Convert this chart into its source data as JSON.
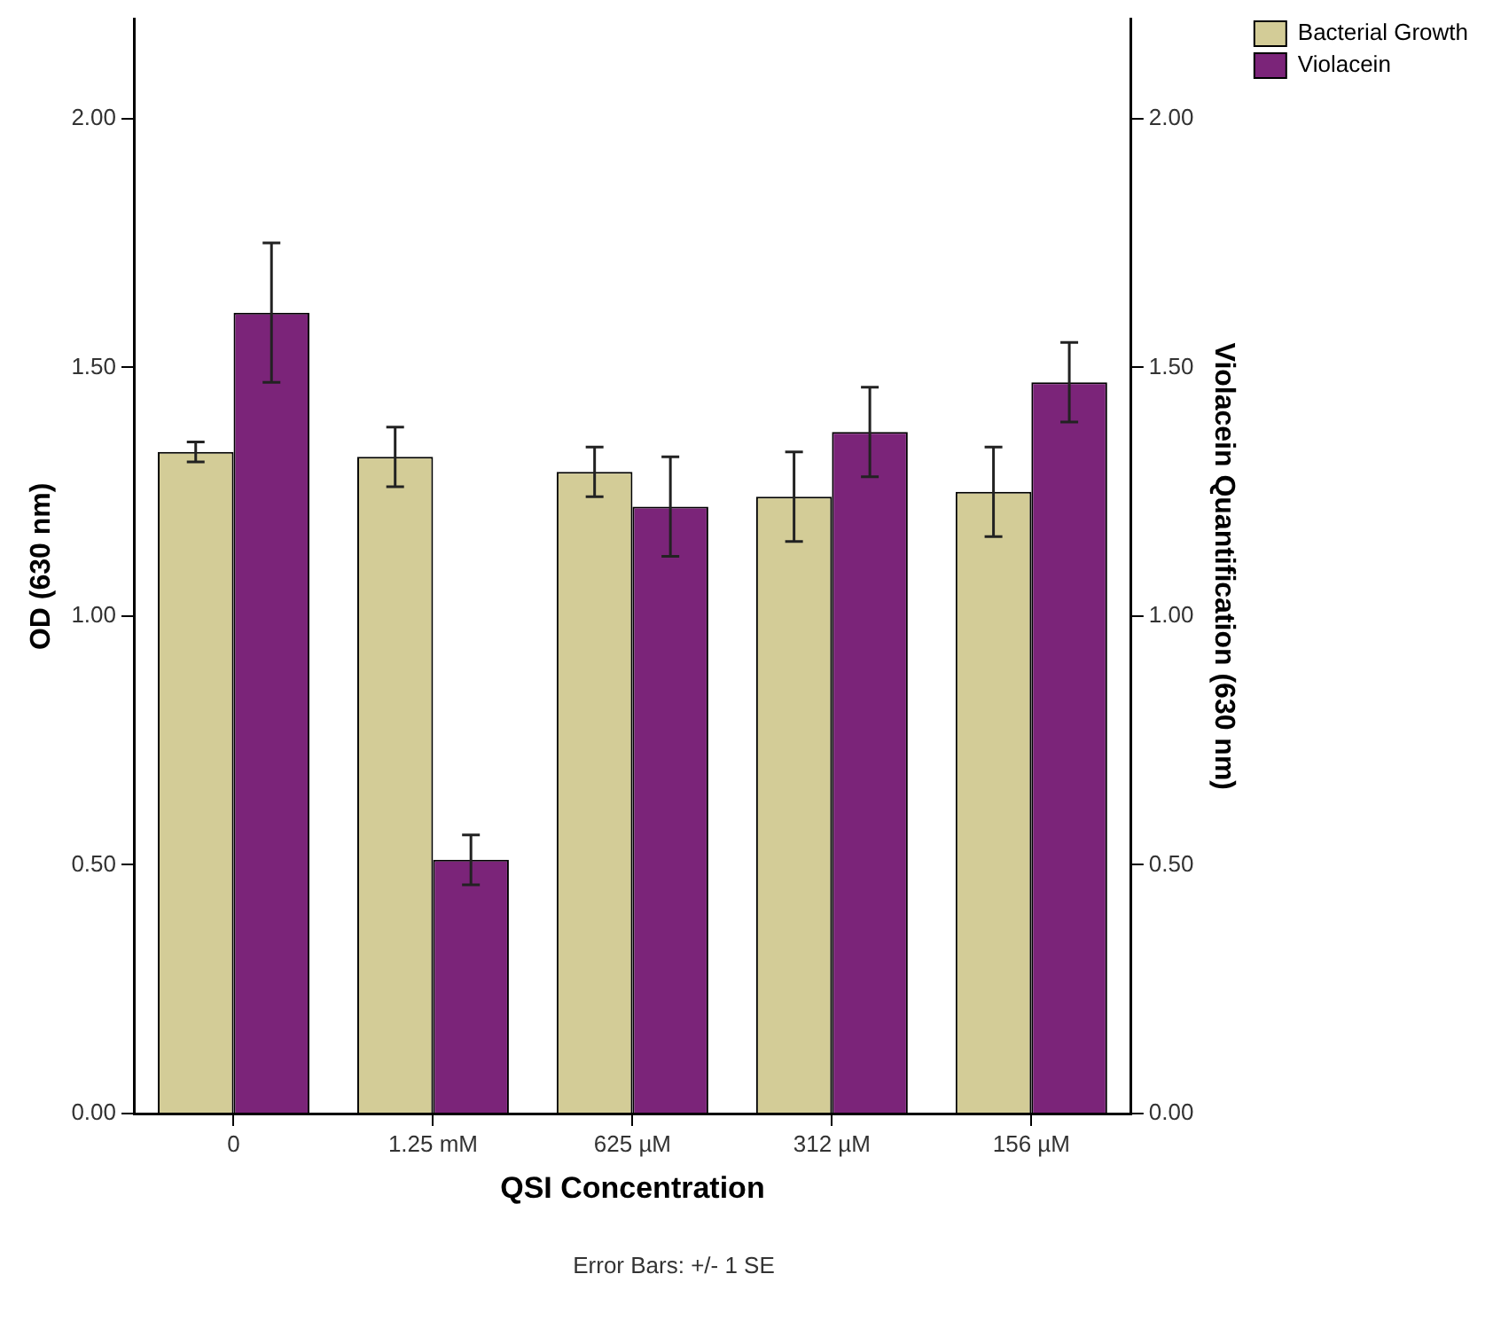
{
  "chart_data": {
    "type": "bar",
    "xlabel": "QSI Concentration",
    "ylabel": "OD (630 nm)",
    "y2label": "Violacein Quantification (630 nm)",
    "categories": [
      "0",
      "1.25 mM",
      "625 µM",
      "312 µM",
      "156 µM"
    ],
    "series": [
      {
        "name": "Bacterial Growth",
        "color": "#d3cc97",
        "values": [
          1.33,
          1.32,
          1.29,
          1.24,
          1.25
        ],
        "errors": [
          0.02,
          0.06,
          0.05,
          0.09,
          0.09
        ]
      },
      {
        "name": "Violacein",
        "color": "#7b2479",
        "axis": "y2",
        "values": [
          1.61,
          0.51,
          1.22,
          1.37,
          1.47
        ],
        "errors": [
          0.14,
          0.05,
          0.1,
          0.09,
          0.08
        ]
      }
    ],
    "ylim": [
      0,
      2.2
    ],
    "yticks": [
      {
        "value": 0,
        "label": "0.00"
      },
      {
        "value": 0.5,
        "label": "0.50"
      },
      {
        "value": 1,
        "label": "1.00"
      },
      {
        "value": 1.5,
        "label": "1.50"
      },
      {
        "value": 2,
        "label": "2.00"
      }
    ],
    "y2lim": [
      0,
      2.2
    ],
    "y2ticks": [
      {
        "value": 0,
        "label": "0.00"
      },
      {
        "value": 0.5,
        "label": "0.50"
      },
      {
        "value": 1,
        "label": "1.00"
      },
      {
        "value": 1.5,
        "label": "1.50"
      },
      {
        "value": 2,
        "label": "2.00"
      }
    ],
    "grid": false,
    "legend": "top right",
    "annotations": [
      "Error Bars: +/- 1 SE"
    ]
  }
}
